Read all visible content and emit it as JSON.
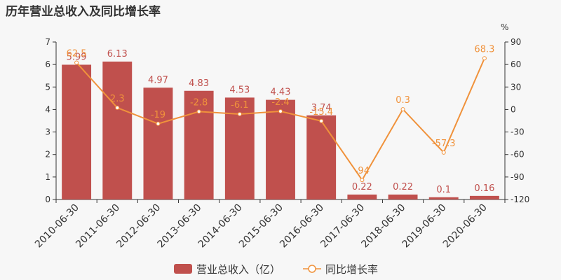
{
  "title": "历年营业总收入及同比增长率",
  "right_unit": "%",
  "legend": {
    "bar_label": "营业总收入（亿）",
    "line_label": "同比增长率"
  },
  "colors": {
    "bar": "#c0504d",
    "line": "#f0923b"
  },
  "chart_data": {
    "type": "bar",
    "categories": [
      "2010-06-30",
      "2011-06-30",
      "2012-06-30",
      "2013-06-30",
      "2014-06-30",
      "2015-06-30",
      "2016-06-30",
      "2017-06-30",
      "2018-06-30",
      "2019-06-30",
      "2020-06-30"
    ],
    "series": [
      {
        "name": "营业总收入（亿）",
        "type": "bar",
        "axis": "left",
        "values": [
          5.99,
          6.13,
          4.97,
          4.83,
          4.53,
          4.43,
          3.74,
          0.22,
          0.22,
          0.1,
          0.16
        ],
        "labels": [
          "5.99",
          "6.13",
          "4.97",
          "4.83",
          "4.53",
          "4.43",
          "3.74",
          "0.22",
          "0.22",
          "0.1",
          "0.16"
        ]
      },
      {
        "name": "同比增长率",
        "type": "line",
        "axis": "right",
        "values": [
          62.5,
          2.3,
          -19,
          -2.8,
          -6.1,
          -2.4,
          -15.4,
          -94,
          0.3,
          -57.3,
          68.3
        ],
        "labels": [
          "62.5",
          "2.3",
          "-19",
          "-2.8",
          "-6.1",
          "-2.4",
          "-15.4",
          "-94",
          "0.3",
          "-57.3",
          "68.3"
        ]
      }
    ],
    "left_axis": {
      "ylim": [
        0,
        7
      ],
      "ticks": [
        "0",
        "1",
        "2",
        "3",
        "4",
        "5",
        "6",
        "7"
      ]
    },
    "right_axis": {
      "ylim": [
        -120,
        90
      ],
      "ticks": [
        "-120",
        "-90",
        "-60",
        "-30",
        "0",
        "30",
        "60",
        "90"
      ]
    },
    "grid": false,
    "legend_position": "bottom"
  }
}
